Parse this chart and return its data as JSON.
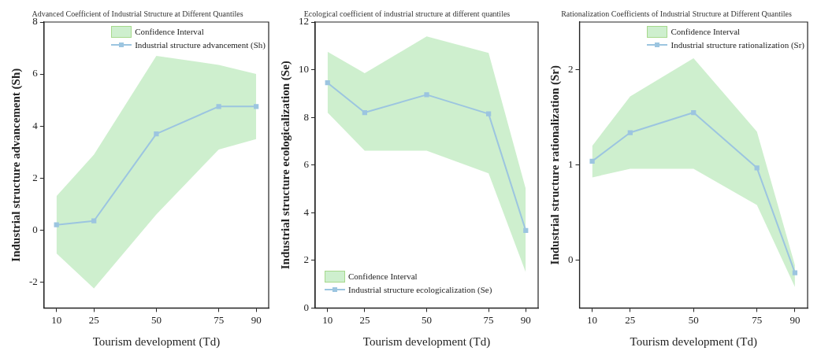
{
  "chart_data": [
    {
      "type": "line",
      "title": "Advanced Coefficient of Industrial Structure at Different Quantiles",
      "xlabel": "Tourism development (Td)",
      "ylabel": "Industrial structure advancement (Sh)",
      "x": [
        10,
        25,
        50,
        75,
        90
      ],
      "xlim": [
        5,
        95
      ],
      "xticks": [
        10,
        25,
        50,
        75,
        90
      ],
      "ylim": [
        -3,
        8
      ],
      "yticks": [
        -2,
        0,
        2,
        4,
        6,
        8
      ],
      "annotations": [
        "Confidence Interval"
      ],
      "legend": "top right",
      "marker": "square",
      "grid": false,
      "series": [
        {
          "name": "Industrial structure advancement (Sh)",
          "color": "#9cc5e0",
          "values": [
            0.2,
            0.35,
            3.7,
            4.75,
            4.75
          ],
          "lower": [
            -0.9,
            -2.25,
            0.6,
            3.1,
            3.5
          ],
          "upper": [
            1.3,
            2.9,
            6.7,
            6.35,
            6.0
          ]
        }
      ]
    },
    {
      "type": "line",
      "title": "Ecological coefficient of industrial structure at different quantiles",
      "xlabel": "Tourism development (Td)",
      "ylabel": "Industrial structure ecologicalization (Se)",
      "x": [
        10,
        25,
        50,
        75,
        90
      ],
      "xlim": [
        5,
        95
      ],
      "xticks": [
        10,
        25,
        50,
        75,
        90
      ],
      "ylim": [
        0,
        12
      ],
      "yticks": [
        0,
        2,
        4,
        6,
        8,
        10,
        12
      ],
      "annotations": [
        "Confidence Interval"
      ],
      "legend": "bottom left",
      "marker": "square",
      "grid": false,
      "series": [
        {
          "name": "Industrial structure ecologicalization (Se)",
          "color": "#9cc5e0",
          "values": [
            9.45,
            8.2,
            8.95,
            8.15,
            3.25
          ],
          "lower": [
            8.2,
            6.6,
            6.6,
            5.65,
            1.5
          ],
          "upper": [
            10.75,
            9.85,
            11.4,
            10.7,
            5.0
          ]
        }
      ]
    },
    {
      "type": "line",
      "title": "Rationalization Coefficients of Industrial Structure at Different Quantiles",
      "xlabel": "Tourism development (Td)",
      "ylabel": "Industrial structure rationalization (Sr)",
      "x": [
        10,
        25,
        50,
        75,
        90
      ],
      "xlim": [
        5,
        95
      ],
      "xticks": [
        10,
        25,
        50,
        75,
        90
      ],
      "ylim": [
        -0.5,
        2.5
      ],
      "yticks": [
        0,
        1,
        2
      ],
      "annotations": [
        "Confidence Interval"
      ],
      "legend": "top right",
      "marker": "square",
      "grid": false,
      "series": [
        {
          "name": "Industrial structure rationalization (Sr)",
          "color": "#9cc5e0",
          "values": [
            1.04,
            1.34,
            1.55,
            0.97,
            -0.13
          ],
          "lower": [
            0.87,
            0.96,
            0.96,
            0.58,
            -0.28
          ],
          "upper": [
            1.2,
            1.72,
            2.12,
            1.35,
            -0.05
          ]
        }
      ]
    }
  ]
}
